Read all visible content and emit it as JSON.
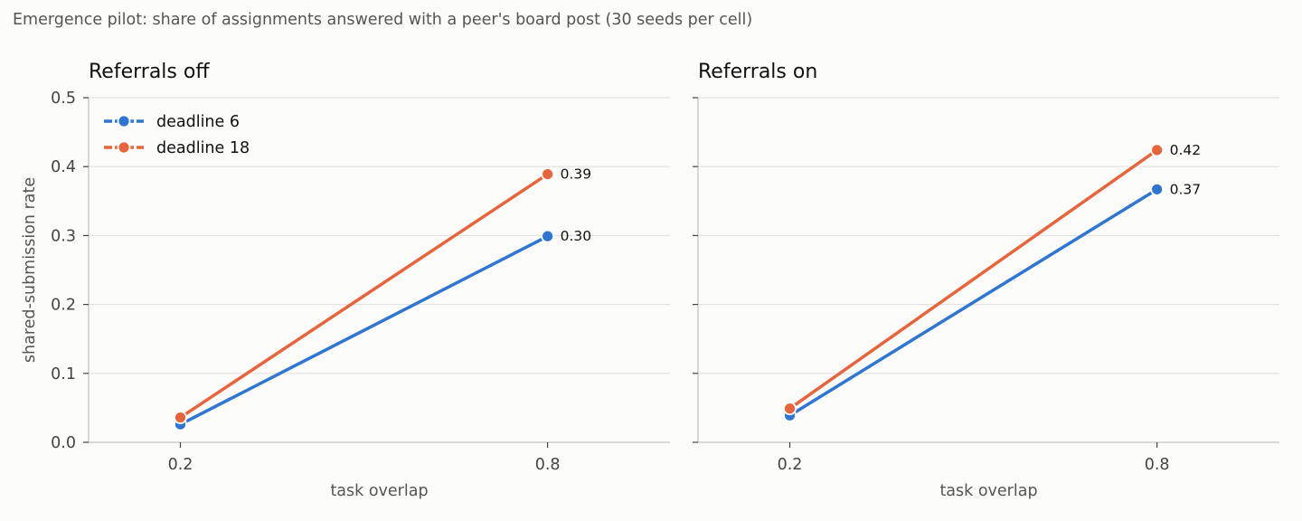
{
  "suptitle": "Emergence pilot: share of assignments answered with a peer's board post (30 seeds per cell)",
  "colors": {
    "deadline_6": "#2f75d2",
    "deadline_18": "#e8643a",
    "grid": "#e3e3e3",
    "axis": "#cccccc",
    "background": "#fcfcfa"
  },
  "chart_data": [
    {
      "type": "line",
      "title": "Referrals off",
      "xlabel": "task overlap",
      "ylabel": "shared-submission rate",
      "x": [
        0.2,
        0.8
      ],
      "x_tick_labels": [
        "0.2",
        "0.8"
      ],
      "xlim": [
        0.05,
        1.0
      ],
      "ylim": [
        0,
        0.5
      ],
      "y_ticks": [
        0,
        0.1,
        0.2,
        0.3,
        0.4,
        0.5
      ],
      "y_tick_labels": [
        "0.0",
        "0.1",
        "0.2",
        "0.3",
        "0.4",
        "0.5"
      ],
      "grid": "y",
      "legend": "top-left",
      "series": [
        {
          "name": "deadline 6",
          "color": "#2f75d2",
          "values": [
            0.026,
            0.299
          ],
          "end_label": "0.30"
        },
        {
          "name": "deadline 18",
          "color": "#e8643a",
          "values": [
            0.036,
            0.389
          ],
          "end_label": "0.39"
        }
      ]
    },
    {
      "type": "line",
      "title": "Referrals on",
      "xlabel": "task overlap",
      "ylabel": "",
      "x": [
        0.2,
        0.8
      ],
      "x_tick_labels": [
        "0.2",
        "0.8"
      ],
      "xlim": [
        0.05,
        1.0
      ],
      "ylim": [
        0,
        0.5
      ],
      "y_ticks": [
        0,
        0.1,
        0.2,
        0.3,
        0.4,
        0.5
      ],
      "grid": "y",
      "series": [
        {
          "name": "deadline 6",
          "color": "#2f75d2",
          "values": [
            0.039,
            0.367
          ],
          "end_label": "0.37"
        },
        {
          "name": "deadline 18",
          "color": "#e8643a",
          "values": [
            0.049,
            0.424
          ],
          "end_label": "0.42"
        }
      ]
    }
  ]
}
